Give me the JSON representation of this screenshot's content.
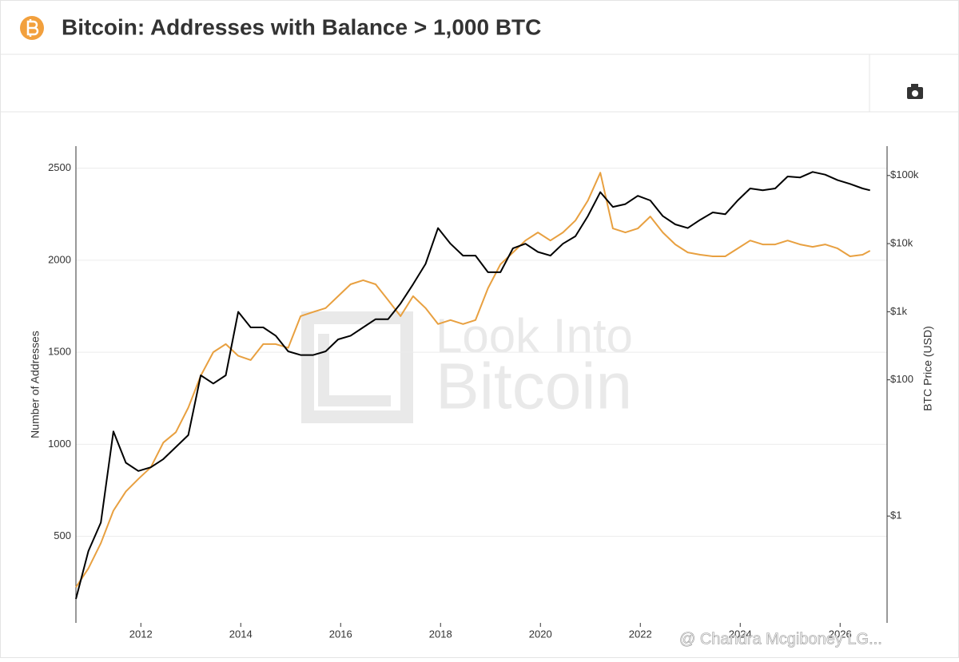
{
  "header": {
    "title": "Bitcoin: Addresses with Balance > 1,000 BTC"
  },
  "watermark": {
    "line1": "Look Into",
    "line2": "Bitcoin"
  },
  "overlay_caption": "@ Chandra Mcgiboney LG...",
  "chart_data": {
    "type": "line",
    "y_label": "Number of Addresses",
    "y2_label": "BTC Price (USD)",
    "x": [
      2010.7,
      2010.95,
      2011.2,
      2011.45,
      2011.7,
      2011.95,
      2012.2,
      2012.45,
      2012.7,
      2012.95,
      2013.2,
      2013.45,
      2013.7,
      2013.95,
      2014.2,
      2014.45,
      2014.7,
      2014.95,
      2015.2,
      2015.45,
      2015.7,
      2015.95,
      2016.2,
      2016.45,
      2016.7,
      2016.95,
      2017.2,
      2017.45,
      2017.7,
      2017.95,
      2018.2,
      2018.45,
      2018.7,
      2018.95,
      2019.2,
      2019.45,
      2019.7,
      2019.95,
      2020.2,
      2020.45,
      2020.7,
      2020.95,
      2021.2,
      2021.45,
      2021.7,
      2021.95,
      2022.2,
      2022.45,
      2022.7,
      2022.95,
      2023.2,
      2023.45,
      2023.7,
      2023.95,
      2024.2,
      2024.45,
      2024.7,
      2024.95,
      2025.2,
      2025.45,
      2025.7,
      2025.95,
      2026.2,
      2026.45,
      2026.6
    ],
    "series": [
      {
        "color": "#000000",
        "values": [
          160,
          420,
          575,
          1070,
          900,
          855,
          875,
          920,
          985,
          1050,
          1375,
          1330,
          1375,
          1720,
          1635,
          1635,
          1590,
          1505,
          1485,
          1485,
          1505,
          1570,
          1590,
          1635,
          1680,
          1680,
          1765,
          1870,
          1980,
          2175,
          2090,
          2025,
          2025,
          1935,
          1935,
          2065,
          2090,
          2045,
          2025,
          2090,
          2130,
          2240,
          2370,
          2290,
          2305,
          2350,
          2325,
          2240,
          2195,
          2175,
          2220,
          2260,
          2250,
          2325,
          2390,
          2380,
          2390,
          2455,
          2450,
          2480,
          2465,
          2435,
          2415,
          2390,
          2380
        ]
      },
      {
        "color": "#e8a040",
        "axis": "y2",
        "values": [
          0.09,
          0.17,
          0.4,
          1.2,
          2.3,
          3.5,
          5.2,
          12,
          17,
          39,
          115,
          255,
          335,
          225,
          195,
          335,
          335,
          295,
          860,
          990,
          1130,
          1690,
          2530,
          2900,
          2530,
          1480,
          860,
          1690,
          1130,
          660,
          755,
          660,
          755,
          2210,
          4960,
          7430,
          11100,
          14600,
          11100,
          14600,
          21800,
          42800,
          110000,
          16700,
          14600,
          16700,
          25000,
          14600,
          9730,
          7430,
          6860,
          6500,
          6500,
          8510,
          11100,
          9730,
          9730,
          11100,
          9730,
          8980,
          9730,
          8510,
          6500,
          6860,
          7850
        ]
      }
    ],
    "xlim": [
      2010.7,
      2026.94
    ],
    "xticks": [
      2012,
      2014,
      2016,
      2018,
      2020,
      2022,
      2024,
      2026
    ],
    "ylim": [
      30,
      2620
    ],
    "yticks": [
      500,
      1000,
      1500,
      2000,
      2500
    ],
    "y2lim": [
      0.027,
      270000
    ],
    "y2log": true,
    "y2ticks": [
      {
        "value": 1,
        "label": "$1"
      },
      {
        "value": 100,
        "label": "$100"
      },
      {
        "value": 1000,
        "label": "$1k"
      },
      {
        "value": 10000,
        "label": "$10k"
      },
      {
        "value": 100000,
        "label": "$100k"
      }
    ],
    "grid": true
  }
}
